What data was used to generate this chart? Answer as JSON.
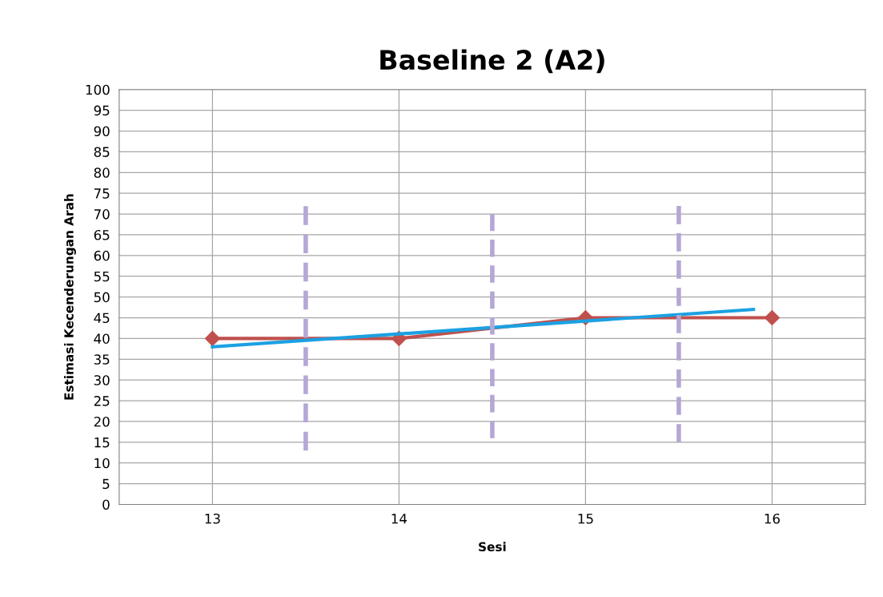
{
  "chart_data": {
    "type": "line",
    "title": "Baseline 2 (A2)",
    "xlabel": "Sesi",
    "ylabel": "Estimasi Kecenderungan Arah",
    "xlim": [
      12.5,
      16.5
    ],
    "xticks": [
      13,
      14,
      15,
      16
    ],
    "ylim": [
      0,
      100
    ],
    "yticks": [
      0,
      5,
      10,
      15,
      20,
      25,
      30,
      35,
      40,
      45,
      50,
      55,
      60,
      65,
      70,
      75,
      80,
      85,
      90,
      95,
      100
    ],
    "grid": true,
    "legend": false,
    "series": [
      {
        "color": "#c0504d",
        "x": [
          13,
          14,
          15,
          16
        ],
        "values": [
          40,
          40,
          45,
          45
        ],
        "marker": "diamond",
        "line_style": "solid"
      },
      {
        "color": "#1ba1e2",
        "x": [
          13,
          15.9
        ],
        "values": [
          38,
          47
        ],
        "marker": "none",
        "line_style": "solid"
      },
      {
        "color": "#b4a7d6",
        "x": [
          13.5,
          13.5
        ],
        "values": [
          13,
          72
        ],
        "marker": "none",
        "line_style": "dashed"
      },
      {
        "color": "#b4a7d6",
        "x": [
          14.5,
          14.5
        ],
        "values": [
          16,
          70
        ],
        "marker": "none",
        "line_style": "dashed"
      },
      {
        "color": "#b4a7d6",
        "x": [
          15.5,
          15.5
        ],
        "values": [
          15,
          72
        ],
        "marker": "none",
        "line_style": "dashed"
      }
    ]
  }
}
